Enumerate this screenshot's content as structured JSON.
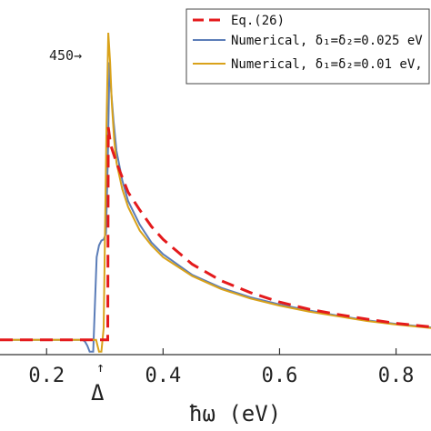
{
  "chart_data": {
    "type": "line",
    "title": "",
    "xlabel": "ħω  (eV)",
    "ylabel": "",
    "xlim": [
      0.12,
      0.86
    ],
    "ylim": [
      -25,
      560
    ],
    "xticks": [
      "0.2",
      "0.4",
      "0.6",
      "0.8"
    ],
    "xtick_values": [
      0.2,
      0.4,
      0.6,
      0.8
    ],
    "legend_position": "top-right",
    "annotations": {
      "peak_marker": "450→",
      "delta_arrow": "↑",
      "delta_label": "Δ"
    },
    "series": [
      {
        "name": "Eq.(26)",
        "color": "#e41a1c",
        "dash": true,
        "x": [
          0.12,
          0.295,
          0.305,
          0.306,
          0.31,
          0.32,
          0.34,
          0.36,
          0.38,
          0.4,
          0.45,
          0.5,
          0.55,
          0.6,
          0.65,
          0.7,
          0.75,
          0.8,
          0.86
        ],
        "y": [
          0,
          0,
          0,
          360,
          330,
          300,
          250,
          220,
          192,
          170,
          128,
          100,
          80,
          64,
          52,
          43,
          35,
          28,
          22
        ]
      },
      {
        "name": "Numerical, δ₁=δ₂=0.025 eV",
        "color": "#5b7db8",
        "x": [
          0.12,
          0.262,
          0.266,
          0.27,
          0.274,
          0.28,
          0.286,
          0.29,
          0.294,
          0.298,
          0.302,
          0.305,
          0.308,
          0.311,
          0.315,
          0.32,
          0.33,
          0.34,
          0.36,
          0.38,
          0.4,
          0.45,
          0.5,
          0.55,
          0.6,
          0.65,
          0.7,
          0.75,
          0.8,
          0.86
        ],
        "y": [
          0,
          0,
          -3,
          -10,
          -20,
          -20,
          140,
          160,
          168,
          170,
          180,
          300,
          470,
          420,
          370,
          320,
          270,
          235,
          195,
          165,
          145,
          110,
          88,
          72,
          60,
          50,
          41,
          33,
          27,
          21
        ]
      },
      {
        "name": "Numerical, δ₁=δ₂=0.01 eV,",
        "color": "#d9a21a",
        "x": [
          0.12,
          0.285,
          0.29,
          0.294,
          0.298,
          0.3,
          0.303,
          0.306,
          0.309,
          0.312,
          0.316,
          0.32,
          0.33,
          0.34,
          0.36,
          0.38,
          0.4,
          0.45,
          0.5,
          0.55,
          0.6,
          0.65,
          0.7,
          0.75,
          0.8,
          0.86
        ],
        "y": [
          0,
          0,
          -20,
          -20,
          20,
          160,
          370,
          520,
          470,
          400,
          340,
          300,
          255,
          225,
          185,
          160,
          140,
          108,
          86,
          70,
          58,
          48,
          40,
          32,
          26,
          20
        ]
      }
    ]
  }
}
